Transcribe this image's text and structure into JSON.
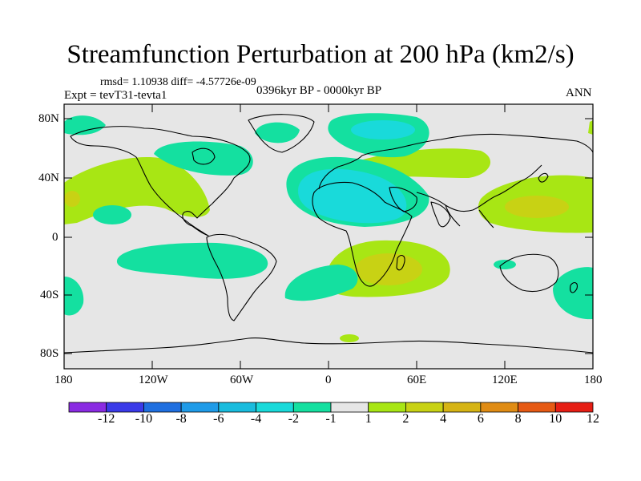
{
  "header": {
    "title": "Streamfunction Perturbation at 200 hPa (km2/s)",
    "stats": "rmsd= 1.10938 diff= -4.57726e-09",
    "expt": "Expt = tevT31-tevta1",
    "period": "0396kyr BP - 0000kyr BP",
    "season": "ANN"
  },
  "axes": {
    "lat_labels": [
      "80N",
      "40N",
      "0",
      "40S",
      "80S"
    ],
    "lon_labels": [
      "180",
      "120W",
      "60W",
      "0",
      "60E",
      "120E",
      "180"
    ]
  },
  "colorbar": {
    "labels": [
      "-12",
      "-10",
      "-8",
      "-6",
      "-4",
      "-2",
      "-1",
      "1",
      "2",
      "4",
      "6",
      "8",
      "10",
      "12"
    ],
    "colors": [
      "#8a2be2",
      "#3a3ae8",
      "#1f6fe0",
      "#1f9be8",
      "#19bcde",
      "#19dada",
      "#14e0a0",
      "#e6e6e6",
      "#a8e614",
      "#c8d214",
      "#d6b414",
      "#e08c14",
      "#e65a14",
      "#e61e14"
    ]
  },
  "colors": {
    "ocean_bg": "#e6e6e6",
    "pos1": "#a8e614",
    "pos2": "#c8d214",
    "neg1": "#14e0a0",
    "neg2": "#19dada"
  }
}
